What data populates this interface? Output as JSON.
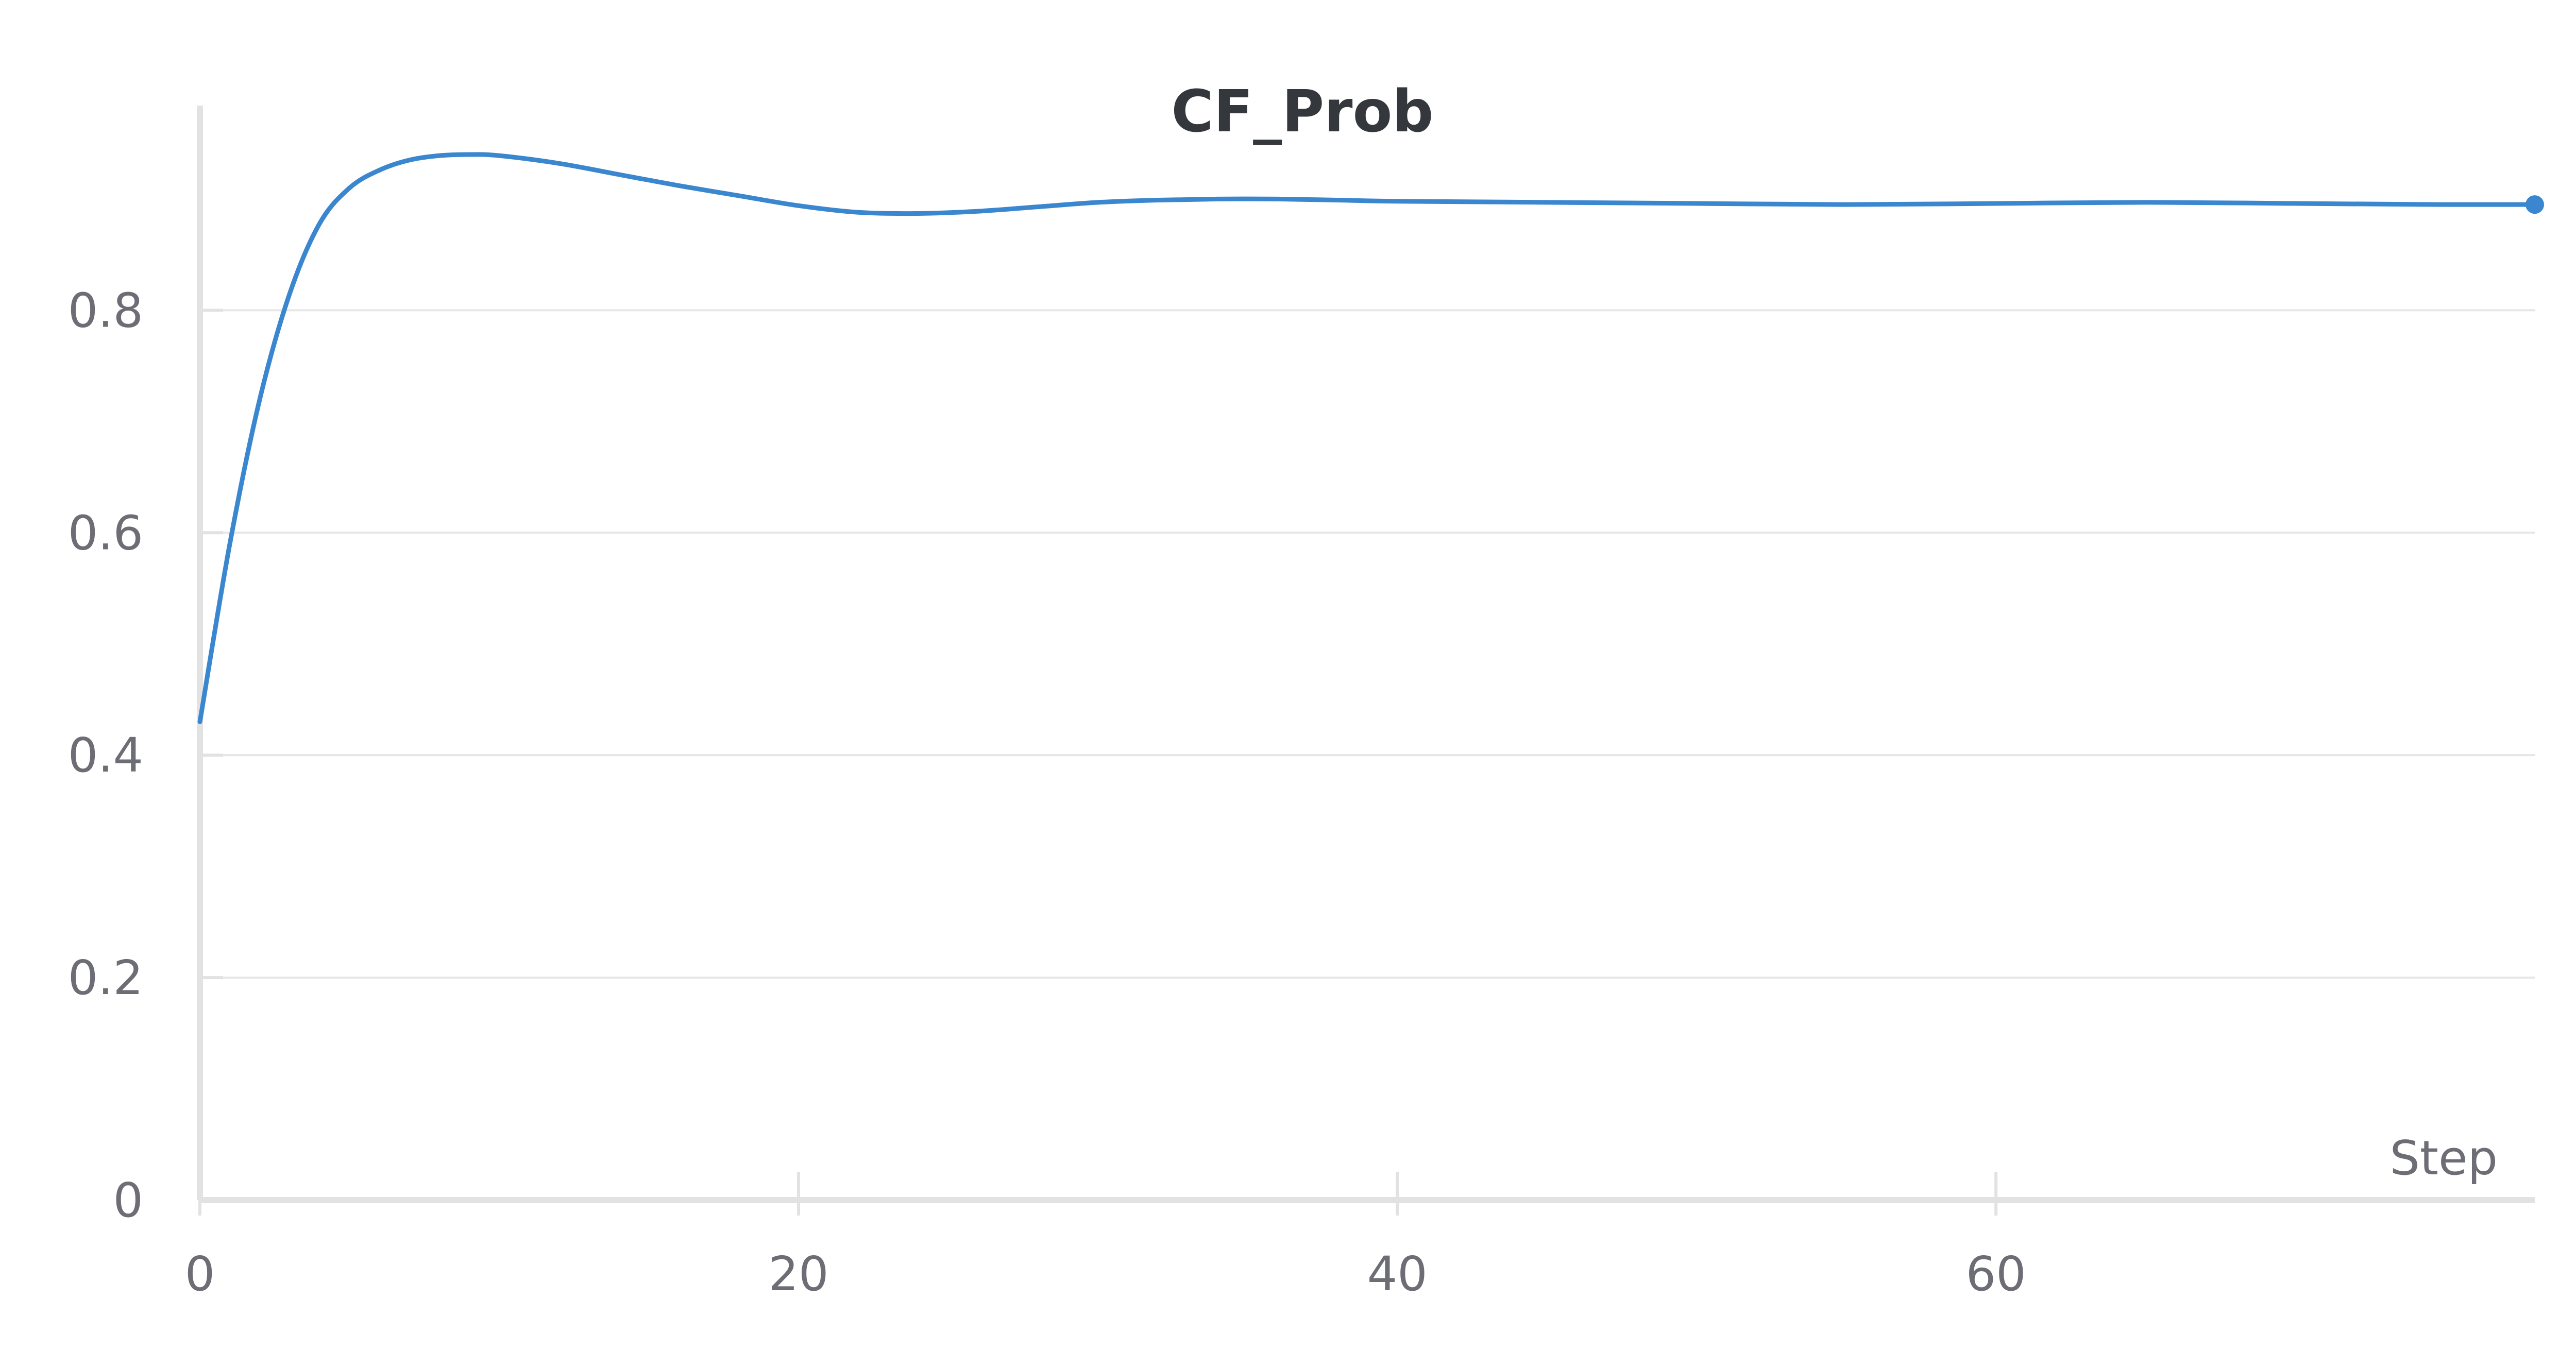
{
  "chart_data": {
    "type": "line",
    "title": "CF_Prob",
    "xlabel": "Step",
    "ylabel": "",
    "xlim": [
      0,
      78
    ],
    "ylim": [
      0,
      0.94
    ],
    "xticks": [
      0,
      20,
      40,
      60
    ],
    "yticks": [
      0,
      0.2,
      0.4,
      0.6,
      0.8
    ],
    "xtick_labels": [
      "0",
      "20",
      "40",
      "60"
    ],
    "ytick_labels": [
      "0",
      "0.2",
      "0.4",
      "0.6",
      "0.8"
    ],
    "grid": "horizontal",
    "legend": "none",
    "series": [
      {
        "color": "#3a87cf",
        "end_marker": true,
        "x": [
          0,
          1,
          2,
          3,
          4,
          5,
          6,
          7,
          8,
          9,
          10,
          12,
          14,
          16,
          18,
          20,
          22,
          24,
          26,
          28,
          30,
          32,
          34,
          36,
          38,
          40,
          45,
          50,
          55,
          60,
          65,
          70,
          75,
          78
        ],
        "y": [
          0.43,
          0.59,
          0.72,
          0.815,
          0.878,
          0.91,
          0.926,
          0.935,
          0.939,
          0.94,
          0.939,
          0.932,
          0.922,
          0.912,
          0.903,
          0.894,
          0.888,
          0.887,
          0.889,
          0.893,
          0.897,
          0.899,
          0.9,
          0.9,
          0.899,
          0.898,
          0.897,
          0.896,
          0.895,
          0.896,
          0.897,
          0.896,
          0.895,
          0.895
        ]
      }
    ]
  }
}
